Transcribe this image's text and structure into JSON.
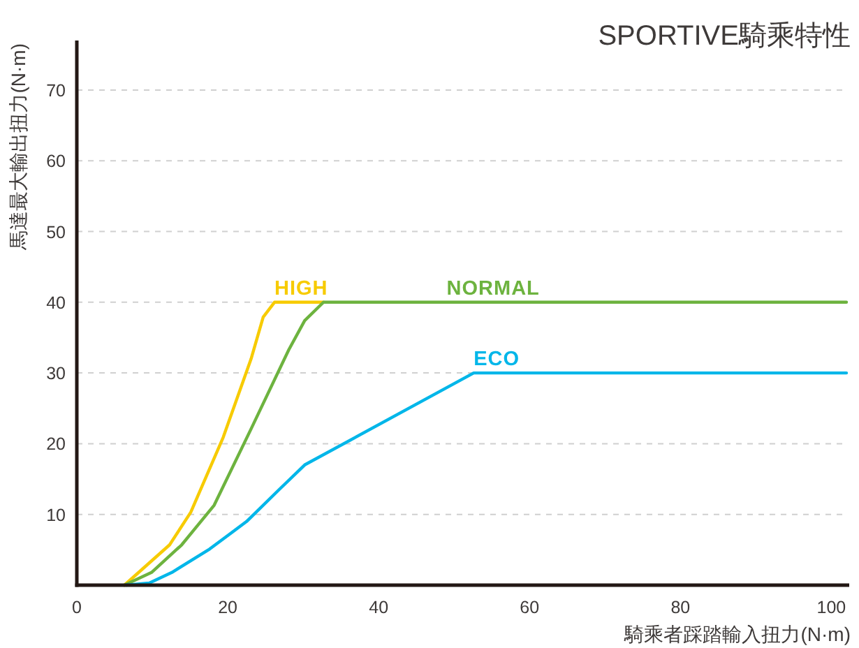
{
  "chart_data": {
    "type": "line",
    "title": "SPORTIVE騎乘特性",
    "xlabel": "騎乘者踩踏輸入扭力(N·m)",
    "ylabel": "馬達最大輸出扭力(N·m)",
    "xlim": [
      0,
      102
    ],
    "ylim": [
      0,
      77
    ],
    "xticks": [
      0,
      20,
      40,
      60,
      80,
      100
    ],
    "yticks": [
      10,
      20,
      30,
      40,
      50,
      60,
      70
    ],
    "grid": "y",
    "series": [
      {
        "name": "HIGH",
        "color": "#f7cb00",
        "x": [
          6.3,
          12.3,
          15.1,
          19.4,
          23.1,
          24.7,
          26.2,
          32.7
        ],
        "values": [
          0,
          5.7,
          10.3,
          20.9,
          32,
          37.9,
          40,
          40
        ]
      },
      {
        "name": "NORMAL",
        "color": "#6db33f",
        "x": [
          6.3,
          9.9,
          13.9,
          18.2,
          23.1,
          28.1,
          30.2,
          32.7,
          102
        ],
        "values": [
          0,
          1.8,
          5.7,
          11.3,
          22.1,
          33.3,
          37.4,
          40,
          40
        ]
      },
      {
        "name": "ECO",
        "color": "#00b6e9",
        "x": [
          6.5,
          9.6,
          12.6,
          17.6,
          22.5,
          26.9,
          30.2,
          52.6,
          102
        ],
        "values": [
          0,
          0.3,
          1.8,
          5.1,
          9,
          13.6,
          17,
          30,
          30
        ]
      }
    ]
  }
}
